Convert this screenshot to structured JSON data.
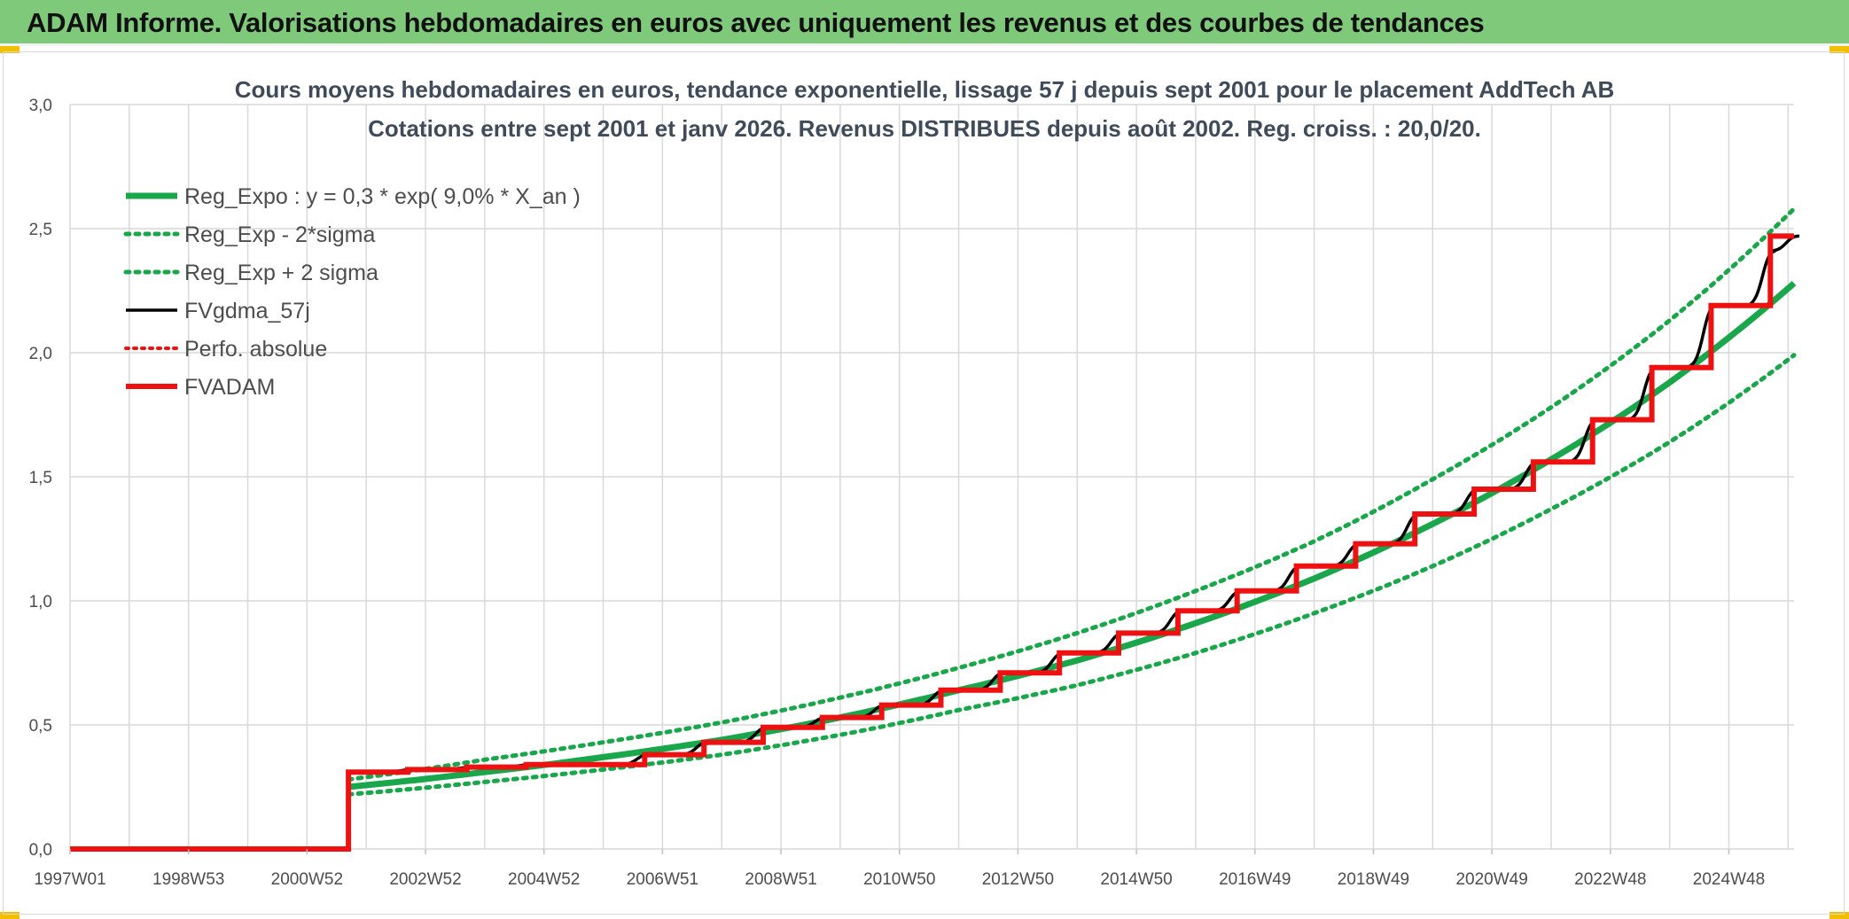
{
  "banner": {
    "title": "ADAM Informe. Valorisations hebdomadaires en euros avec uniquement les revenus et des courbes de tendances"
  },
  "colors": {
    "banner_bg": "#7fc97b",
    "reg_green": "#1aa64a",
    "red": "#ee1111",
    "black": "#000000",
    "grid": "#d9d9d9",
    "title_text": "#404b5a"
  },
  "chart_data": {
    "type": "line",
    "title": "Cours moyens hebdomadaires en euros, tendance exponentielle, lissage 57 j depuis sept 2001 pour le placement AddTech AB",
    "subtitle": "Cotations entre sept 2001 et janv 2026. Revenus DISTRIBUES depuis août 2002. Reg. croiss. : 20,0/20.",
    "x_tick_labels": [
      "1997W01",
      "1998W53",
      "2000W52",
      "2002W52",
      "2004W52",
      "2006W51",
      "2008W51",
      "2010W50",
      "2012W50",
      "2014W50",
      "2016W49",
      "2018W49",
      "2020W49",
      "2022W48",
      "2024W48"
    ],
    "x_range": [
      1997.0,
      2026.1
    ],
    "y_tick_labels": [
      "0,0",
      "0,5",
      "1,0",
      "1,5",
      "2,0",
      "2,5",
      "3,0"
    ],
    "ylim": [
      0,
      3.0
    ],
    "grid": true,
    "legend_position": "top-left",
    "series": [
      {
        "name": "Reg_Expo : y = 0,3 * exp( 9,0% *  X_an )",
        "style": "solid-green-thick",
        "x": [
          2001.7,
          2004,
          2006,
          2008,
          2010,
          2012,
          2014,
          2016,
          2018,
          2020,
          2022,
          2024,
          2026.1
        ],
        "values": [
          0.25,
          0.31,
          0.37,
          0.44,
          0.53,
          0.64,
          0.76,
          0.91,
          1.09,
          1.31,
          1.57,
          1.88,
          2.28
        ]
      },
      {
        "name": "Reg_Exp - 2*sigma",
        "style": "dotted-green",
        "x": [
          2001.7,
          2004,
          2006,
          2008,
          2010,
          2012,
          2014,
          2016,
          2018,
          2020,
          2022,
          2024,
          2026.1
        ],
        "values": [
          0.22,
          0.27,
          0.32,
          0.38,
          0.46,
          0.56,
          0.66,
          0.79,
          0.95,
          1.14,
          1.37,
          1.64,
          1.99
        ]
      },
      {
        "name": "Reg_Exp + 2 sigma",
        "style": "dotted-green",
        "x": [
          2001.7,
          2004,
          2006,
          2008,
          2010,
          2012,
          2014,
          2016,
          2018,
          2020,
          2022,
          2024,
          2026.1
        ],
        "values": [
          0.28,
          0.36,
          0.43,
          0.51,
          0.61,
          0.73,
          0.87,
          1.04,
          1.24,
          1.49,
          1.78,
          2.13,
          2.58
        ]
      },
      {
        "name": "FVgdma_57j",
        "style": "solid-black",
        "x": [
          1997.0,
          2001.7,
          2002.7,
          2003.7,
          2004.7,
          2005.7,
          2006.7,
          2007.7,
          2008.7,
          2009.7,
          2010.7,
          2011.7,
          2012.7,
          2013.7,
          2014.7,
          2015.7,
          2016.7,
          2017.7,
          2018.7,
          2019.7,
          2020.7,
          2021.7,
          2022.7,
          2023.7,
          2024.7,
          2025.7,
          2026.1
        ],
        "values": [
          0.0,
          0.31,
          0.32,
          0.33,
          0.34,
          0.34,
          0.38,
          0.43,
          0.49,
          0.53,
          0.58,
          0.64,
          0.71,
          0.79,
          0.87,
          0.96,
          1.04,
          1.14,
          1.23,
          1.35,
          1.45,
          1.56,
          1.73,
          1.94,
          2.19,
          2.41,
          2.47
        ]
      },
      {
        "name": "Perfo. absolue",
        "style": "dotted-red",
        "x": [],
        "values": []
      },
      {
        "name": "FVADAM",
        "style": "solid-red-thick",
        "x": [
          1997.0,
          2001.7,
          2002.7,
          2003.7,
          2004.7,
          2005.7,
          2006.7,
          2007.7,
          2008.7,
          2009.7,
          2010.7,
          2011.7,
          2012.7,
          2013.7,
          2014.7,
          2015.7,
          2016.7,
          2017.7,
          2018.7,
          2019.7,
          2020.7,
          2021.7,
          2022.7,
          2023.7,
          2024.7,
          2025.7,
          2026.1
        ],
        "values": [
          0.0,
          0.31,
          0.32,
          0.33,
          0.34,
          0.34,
          0.38,
          0.43,
          0.49,
          0.53,
          0.58,
          0.64,
          0.71,
          0.79,
          0.87,
          0.96,
          1.04,
          1.14,
          1.23,
          1.35,
          1.45,
          1.56,
          1.73,
          1.94,
          2.19,
          2.47,
          2.47
        ]
      }
    ]
  }
}
